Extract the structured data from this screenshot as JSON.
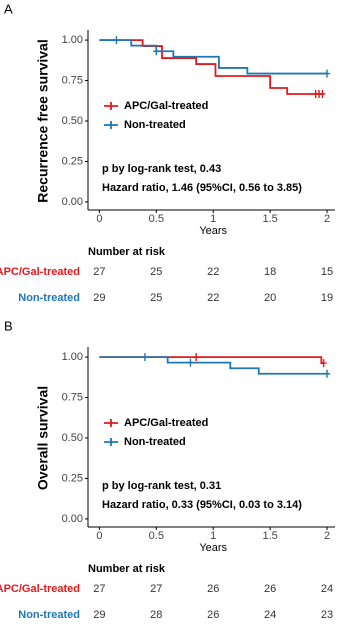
{
  "chart_data": [
    {
      "type": "step",
      "panel_label": "A",
      "y_label": "Recurrence free survival",
      "x_label": "Years",
      "xlim": [
        -0.1,
        2.07
      ],
      "ylim": [
        -0.05,
        1.05
      ],
      "xticks": [
        0,
        0.5,
        1,
        1.5,
        2
      ],
      "yticks": [
        {
          "value": 0,
          "label": "0.00"
        },
        {
          "value": 0.25,
          "label": "0.25"
        },
        {
          "value": 0.5,
          "label": "0.50"
        },
        {
          "value": 0.75,
          "label": "0.75"
        },
        {
          "value": 1,
          "label": "1.00"
        }
      ],
      "series": [
        {
          "name": "APC/Gal-treated",
          "color": "#e31a1c",
          "x": [
            0,
            0.38,
            0.55,
            0.85,
            1.02,
            1.5,
            1.65,
            1.97
          ],
          "values": [
            1,
            0.963,
            0.889,
            0.852,
            0.778,
            0.704,
            0.667,
            0.667
          ],
          "censor_x": [
            1.9,
            1.93,
            1.96
          ]
        },
        {
          "name": "Non-treated",
          "color": "#1f77b4",
          "x": [
            0,
            0.28,
            0.5,
            0.65,
            1.05,
            1.3,
            2.0
          ],
          "values": [
            1,
            0.966,
            0.931,
            0.897,
            0.828,
            0.793,
            0.793
          ],
          "censor_x": [
            0.15,
            0.5,
            2.0
          ]
        }
      ],
      "annotations": [
        "p by log-rank test, 0.43",
        "Hazard ratio, 1.46 (95%CI, 0.56 to 3.85)"
      ],
      "risk_table": {
        "title": "Number at risk",
        "rows": [
          {
            "name": "APC/Gal-treated",
            "color": "#e31a1c",
            "values": [
              27,
              25,
              22,
              18,
              15
            ]
          },
          {
            "name": "Non-treated",
            "color": "#1f77b4",
            "values": [
              29,
              25,
              22,
              20,
              19
            ]
          }
        ]
      }
    },
    {
      "type": "step",
      "panel_label": "B",
      "y_label": "Overall survival",
      "x_label": "Years",
      "xlim": [
        -0.1,
        2.07
      ],
      "ylim": [
        -0.05,
        1.05
      ],
      "xticks": [
        0,
        0.5,
        1,
        1.5,
        2
      ],
      "yticks": [
        {
          "value": 0,
          "label": "0.00"
        },
        {
          "value": 0.25,
          "label": "0.25"
        },
        {
          "value": 0.5,
          "label": "0.50"
        },
        {
          "value": 0.75,
          "label": "0.75"
        },
        {
          "value": 1,
          "label": "1.00"
        }
      ],
      "series": [
        {
          "name": "APC/Gal-treated",
          "color": "#e31a1c",
          "x": [
            0,
            1.95,
            1.97
          ],
          "values": [
            1,
            0.963,
            0.963
          ],
          "censor_x": [
            0.85,
            1.97
          ]
        },
        {
          "name": "Non-treated",
          "color": "#1f77b4",
          "x": [
            0,
            0.6,
            1.15,
            1.4,
            2.0
          ],
          "values": [
            1,
            0.966,
            0.931,
            0.897,
            0.897
          ],
          "censor_x": [
            0.4,
            0.8,
            2.0
          ]
        }
      ],
      "annotations": [
        "p by log-rank test, 0.31",
        "Hazard ratio, 0.33 (95%CI, 0.03 to 3.14)"
      ],
      "risk_table": {
        "title": "Number at risk",
        "rows": [
          {
            "name": "APC/Gal-treated",
            "color": "#e31a1c",
            "values": [
              27,
              27,
              26,
              26,
              24
            ]
          },
          {
            "name": "Non-treated",
            "color": "#1f77b4",
            "values": [
              29,
              28,
              26,
              24,
              23
            ]
          }
        ]
      }
    }
  ]
}
